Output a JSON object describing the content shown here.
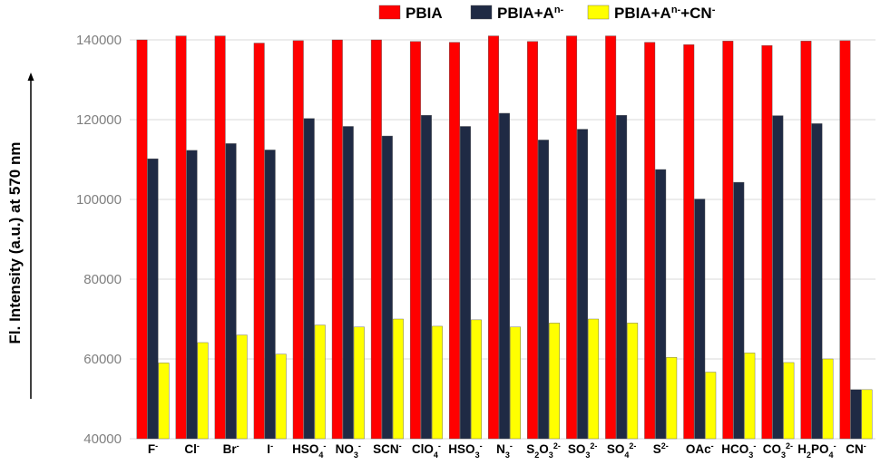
{
  "chart_data": {
    "type": "bar",
    "ylabel": "Fl. Intensity (a.u.) at 570 nm",
    "ylim": [
      40000,
      140000
    ],
    "yticks": [
      "40000",
      "60000",
      "80000",
      "100000",
      "120000",
      "140000"
    ],
    "ytick_values": [
      40000,
      60000,
      80000,
      100000,
      120000,
      140000
    ],
    "grid": true,
    "legend_position": "top",
    "categories": [
      {
        "base": "F",
        "parts": [
          {
            "t": "F",
            "s": ""
          },
          {
            "t": "-",
            "s": "sup"
          }
        ]
      },
      {
        "base": "Cl",
        "parts": [
          {
            "t": "Cl",
            "s": ""
          },
          {
            "t": "-",
            "s": "sup"
          }
        ]
      },
      {
        "base": "Br",
        "parts": [
          {
            "t": "Br",
            "s": ""
          },
          {
            "t": "-",
            "s": "sup"
          }
        ]
      },
      {
        "base": "I",
        "parts": [
          {
            "t": "I",
            "s": ""
          },
          {
            "t": "-",
            "s": "sup"
          }
        ]
      },
      {
        "base": "HSO4",
        "parts": [
          {
            "t": "HSO",
            "s": ""
          },
          {
            "t": "4",
            "s": "sub"
          },
          {
            "t": "-",
            "s": "sup"
          }
        ]
      },
      {
        "base": "NO3",
        "parts": [
          {
            "t": "NO",
            "s": ""
          },
          {
            "t": "3",
            "s": "sub"
          },
          {
            "t": "-",
            "s": "sup"
          }
        ]
      },
      {
        "base": "SCN",
        "parts": [
          {
            "t": "SCN",
            "s": ""
          },
          {
            "t": "-",
            "s": "sup"
          }
        ]
      },
      {
        "base": "ClO4",
        "parts": [
          {
            "t": "ClO",
            "s": ""
          },
          {
            "t": "4",
            "s": "sub"
          },
          {
            "t": "-",
            "s": "sup"
          }
        ]
      },
      {
        "base": "HSO3",
        "parts": [
          {
            "t": "HSO",
            "s": ""
          },
          {
            "t": "3",
            "s": "sub"
          },
          {
            "t": "-",
            "s": "sup"
          }
        ]
      },
      {
        "base": "N3",
        "parts": [
          {
            "t": "N",
            "s": ""
          },
          {
            "t": "3",
            "s": "sub"
          },
          {
            "t": "-",
            "s": "sup"
          }
        ]
      },
      {
        "base": "S2O3",
        "parts": [
          {
            "t": "S",
            "s": ""
          },
          {
            "t": "2",
            "s": "sub"
          },
          {
            "t": "O",
            "s": ""
          },
          {
            "t": "3",
            "s": "sub"
          },
          {
            "t": "2-",
            "s": "sup"
          }
        ]
      },
      {
        "base": "SO3",
        "parts": [
          {
            "t": "SO",
            "s": ""
          },
          {
            "t": "3",
            "s": "sub"
          },
          {
            "t": "2-",
            "s": "sup"
          }
        ]
      },
      {
        "base": "SO4",
        "parts": [
          {
            "t": "SO",
            "s": ""
          },
          {
            "t": "4",
            "s": "sub"
          },
          {
            "t": "2-",
            "s": "sup"
          }
        ]
      },
      {
        "base": "S",
        "parts": [
          {
            "t": "S",
            "s": ""
          },
          {
            "t": "2-",
            "s": "sup"
          }
        ]
      },
      {
        "base": "OAc",
        "parts": [
          {
            "t": "OAc",
            "s": ""
          },
          {
            "t": "-",
            "s": "sup"
          }
        ]
      },
      {
        "base": "HCO3",
        "parts": [
          {
            "t": "HCO",
            "s": ""
          },
          {
            "t": "3",
            "s": "sub"
          },
          {
            "t": "-",
            "s": "sup"
          }
        ]
      },
      {
        "base": "CO3",
        "parts": [
          {
            "t": "CO",
            "s": ""
          },
          {
            "t": "3",
            "s": "sub"
          },
          {
            "t": "2-",
            "s": "sup"
          }
        ]
      },
      {
        "base": "H2PO4",
        "parts": [
          {
            "t": "H",
            "s": ""
          },
          {
            "t": "2",
            "s": "sub"
          },
          {
            "t": "PO",
            "s": ""
          },
          {
            "t": "4",
            "s": "sub"
          },
          {
            "t": "-",
            "s": "sup"
          }
        ]
      },
      {
        "base": "CN",
        "parts": [
          {
            "t": "CN",
            "s": ""
          },
          {
            "t": "-",
            "s": "sup"
          }
        ]
      }
    ],
    "series": [
      {
        "name": "PBIA",
        "legend_parts": [
          {
            "t": "PBIA",
            "s": ""
          }
        ],
        "color": "#ff0000",
        "values": [
          140000,
          141000,
          141000,
          139200,
          139800,
          140000,
          140000,
          139600,
          139400,
          141000,
          139600,
          141000,
          141000,
          139400,
          138800,
          139700,
          138600,
          139700,
          139800
        ]
      },
      {
        "name": "PBIA+An-",
        "legend_parts": [
          {
            "t": "PBIA+A",
            "s": ""
          },
          {
            "t": "n-",
            "s": "sup"
          }
        ],
        "color": "#1f2a44",
        "values": [
          110200,
          112300,
          114000,
          112400,
          120300,
          118300,
          115900,
          121100,
          118300,
          121600,
          114900,
          117600,
          121100,
          107500,
          100100,
          104300,
          121000,
          119000,
          52300
        ]
      },
      {
        "name": "PBIA+An-+CN-",
        "legend_parts": [
          {
            "t": "PBIA+A",
            "s": ""
          },
          {
            "t": "n-",
            "s": "sup"
          },
          {
            "t": "+CN",
            "s": ""
          },
          {
            "t": "-",
            "s": "sup"
          }
        ],
        "color": "#ffff00",
        "values": [
          59000,
          64100,
          66000,
          61200,
          68500,
          68000,
          70000,
          68200,
          69800,
          68000,
          69000,
          70000,
          69000,
          60400,
          56700,
          61500,
          59100,
          60000,
          52300
        ]
      }
    ]
  }
}
